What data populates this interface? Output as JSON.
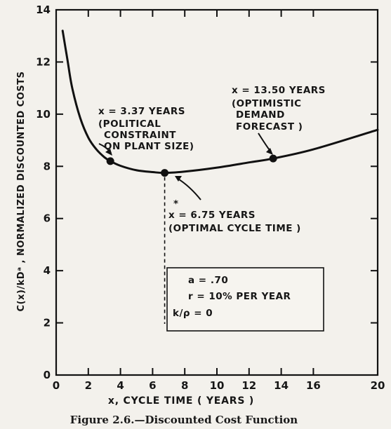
{
  "caption": "Figure 2.6.—Discounted Cost Function",
  "chart_data": {
    "type": "line",
    "title": "",
    "xlabel": "x, CYCLE TIME ( YEARS )",
    "ylabel": "C(x)/kDᵃ , NORMALIZED DISCOUNTED COSTS",
    "xlim": [
      0,
      20
    ],
    "ylim": [
      0,
      14
    ],
    "x_ticks": [
      "0",
      "2",
      "4",
      "6",
      "8",
      "10",
      "12",
      "14",
      "16",
      "20"
    ],
    "y_ticks": [
      "0",
      "2",
      "4",
      "6",
      "8",
      "10",
      "12",
      "14"
    ],
    "series": [
      {
        "x": [
          0.4,
          0.7,
          1.0,
          1.5,
          2.0,
          2.5,
          3.0,
          3.37,
          4.0,
          5.0,
          6.0,
          6.75,
          8.0,
          10.0,
          12.0,
          13.5,
          16.0,
          20.0
        ],
        "y": [
          13.2,
          12.1,
          11.0,
          9.85,
          9.1,
          8.65,
          8.35,
          8.2,
          8.02,
          7.85,
          7.78,
          7.75,
          7.8,
          7.95,
          8.15,
          8.3,
          8.65,
          9.4
        ]
      }
    ],
    "points": [
      {
        "x": 3.37,
        "y": 8.2,
        "label_lines": [
          "x = 3.37 YEARS",
          "(POLITICAL",
          "CONSTRAINT",
          "ON PLANT SIZE)"
        ]
      },
      {
        "x": 6.75,
        "y": 7.75,
        "label_lines": [
          "x = 6.75 YEARS",
          "(OPTIMAL CYCLE TIME )"
        ],
        "star": "*"
      },
      {
        "x": 13.5,
        "y": 8.3,
        "label_lines": [
          "x = 13.50 YEARS",
          "(OPTIMISTIC",
          "DEMAND",
          "FORECAST )"
        ]
      }
    ],
    "legend_box": [
      "a = .70",
      "r = 10% PER YEAR",
      "k/ρ = 0"
    ]
  }
}
